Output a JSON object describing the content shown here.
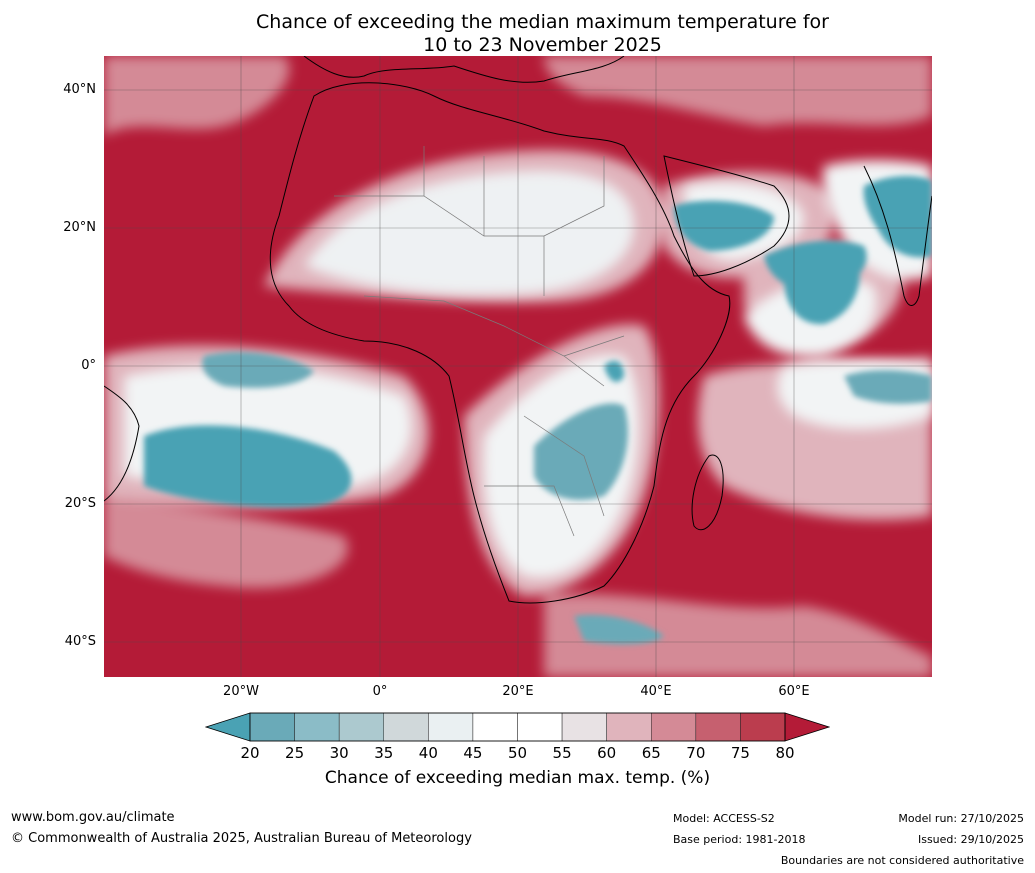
{
  "title": {
    "line1": "Chance of exceeding the median maximum temperature for",
    "line2": "10 to 23 November 2025"
  },
  "map": {
    "lat_labels": [
      "40°N",
      "20°N",
      "0°",
      "20°S",
      "40°S"
    ],
    "lon_labels": [
      "20°W",
      "0°",
      "20°E",
      "40°E",
      "60°E"
    ],
    "colors": {
      "ocean_hot": "#b41b37",
      "cool": "#4aa2b4",
      "near_median": "#f2f2f2",
      "border": "#000000"
    }
  },
  "colorbar": {
    "ticks": [
      "20",
      "25",
      "30",
      "35",
      "40",
      "45",
      "50",
      "55",
      "60",
      "65",
      "70",
      "75",
      "80"
    ],
    "colors": [
      "#4aa2b4",
      "#6aaab8",
      "#8bbcc7",
      "#acc9cf",
      "#d0d8da",
      "#eaf0f2",
      "#ffffff",
      "#ffffff",
      "#e8e2e4",
      "#e0b4bc",
      "#d48a96",
      "#c6606f",
      "#bb3d4e",
      "#b41b37"
    ],
    "label": "Chance of exceeding median max. temp. (%)"
  },
  "footer": {
    "website": "www.bom.gov.au/climate",
    "copyright": "© Commonwealth of Australia 2025, Australian Bureau of Meteorology",
    "model": "Model: ACCESS-S2",
    "base_period": "Base period: 1981-2018",
    "model_run": "Model run: 27/10/2025",
    "issued": "Issued: 29/10/2025",
    "disclaimer": "Boundaries are not considered authoritative"
  }
}
